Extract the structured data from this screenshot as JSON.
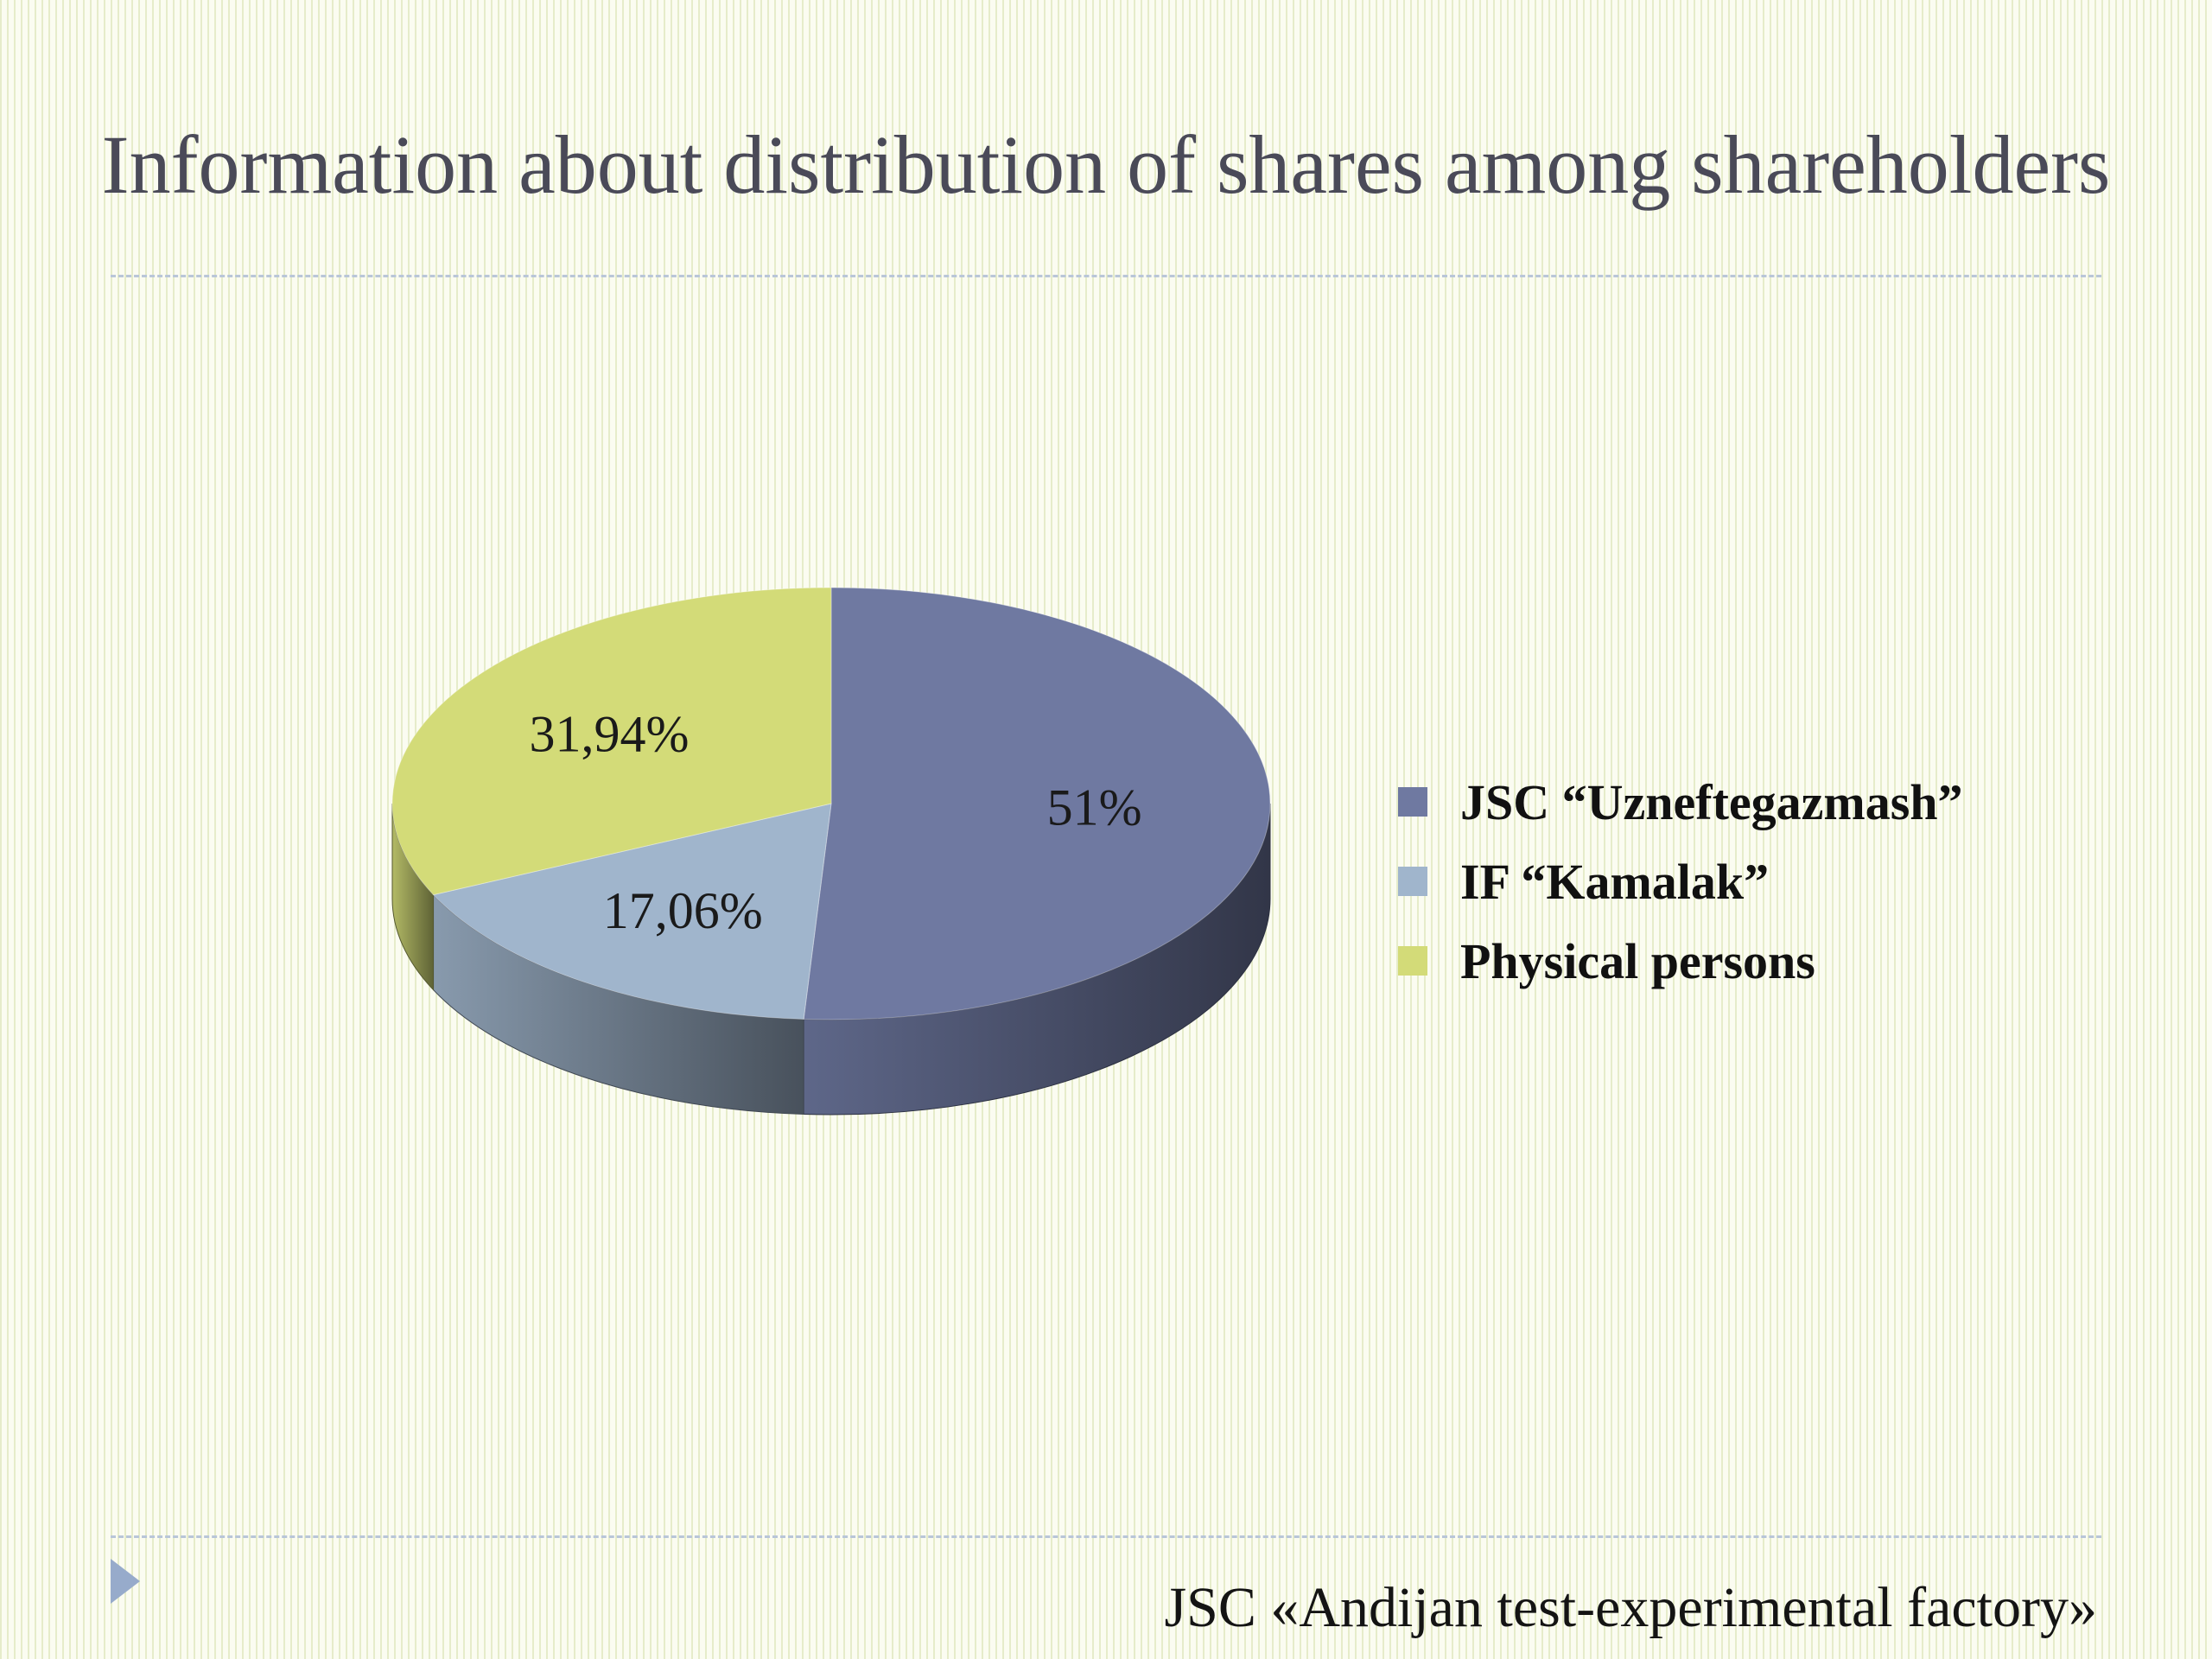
{
  "slide": {
    "title": "Information about distribution of shares among shareholders",
    "footer": "JSC «Andijan test-experimental factory»"
  },
  "chart_data": {
    "type": "pie",
    "title": "",
    "legend_position": "right",
    "slices": [
      {
        "name": "JSC “Uzneftegazmash”",
        "value": 51,
        "label": "51%",
        "color": "#6f79a1"
      },
      {
        "name": "IF “Kamalak”",
        "value": 17.06,
        "label": "17,06%",
        "color": "#a0b5cc"
      },
      {
        "name": "Physical persons",
        "value": 31.94,
        "label": "31,94%",
        "color": "#d3db78"
      }
    ]
  },
  "colors": {
    "background": "#fbfcf1",
    "divider": "#b9c6d8",
    "nav_arrow": "#97abcb"
  },
  "icons": {
    "nav": "triangle-right-icon"
  }
}
